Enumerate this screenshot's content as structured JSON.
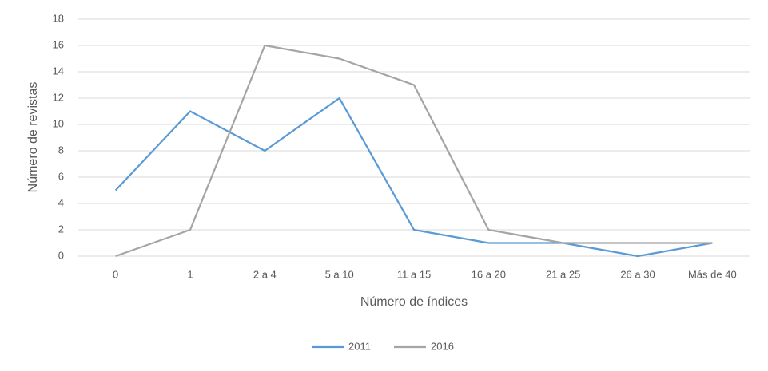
{
  "chart_data": {
    "type": "line",
    "x_label": "Número de índices",
    "y_label": "Número de revistas",
    "categories": [
      "0",
      "1",
      "2 a 4",
      "5 a 10",
      "11 a 15",
      "16 a 20",
      "21 a 25",
      "26 a 30",
      "Más de 40"
    ],
    "series": [
      {
        "name": "2011",
        "color": "#5b9bd5",
        "values": [
          5,
          11,
          8,
          12,
          2,
          1,
          1,
          0,
          1
        ]
      },
      {
        "name": "2016",
        "color": "#a5a5a5",
        "values": [
          0,
          2,
          16,
          15,
          13,
          2,
          1,
          1,
          1
        ]
      }
    ],
    "ylim": [
      0,
      18
    ],
    "yticks": [
      0,
      2,
      4,
      6,
      8,
      10,
      12,
      14,
      16,
      18
    ],
    "grid": true,
    "legend": "bottom"
  }
}
